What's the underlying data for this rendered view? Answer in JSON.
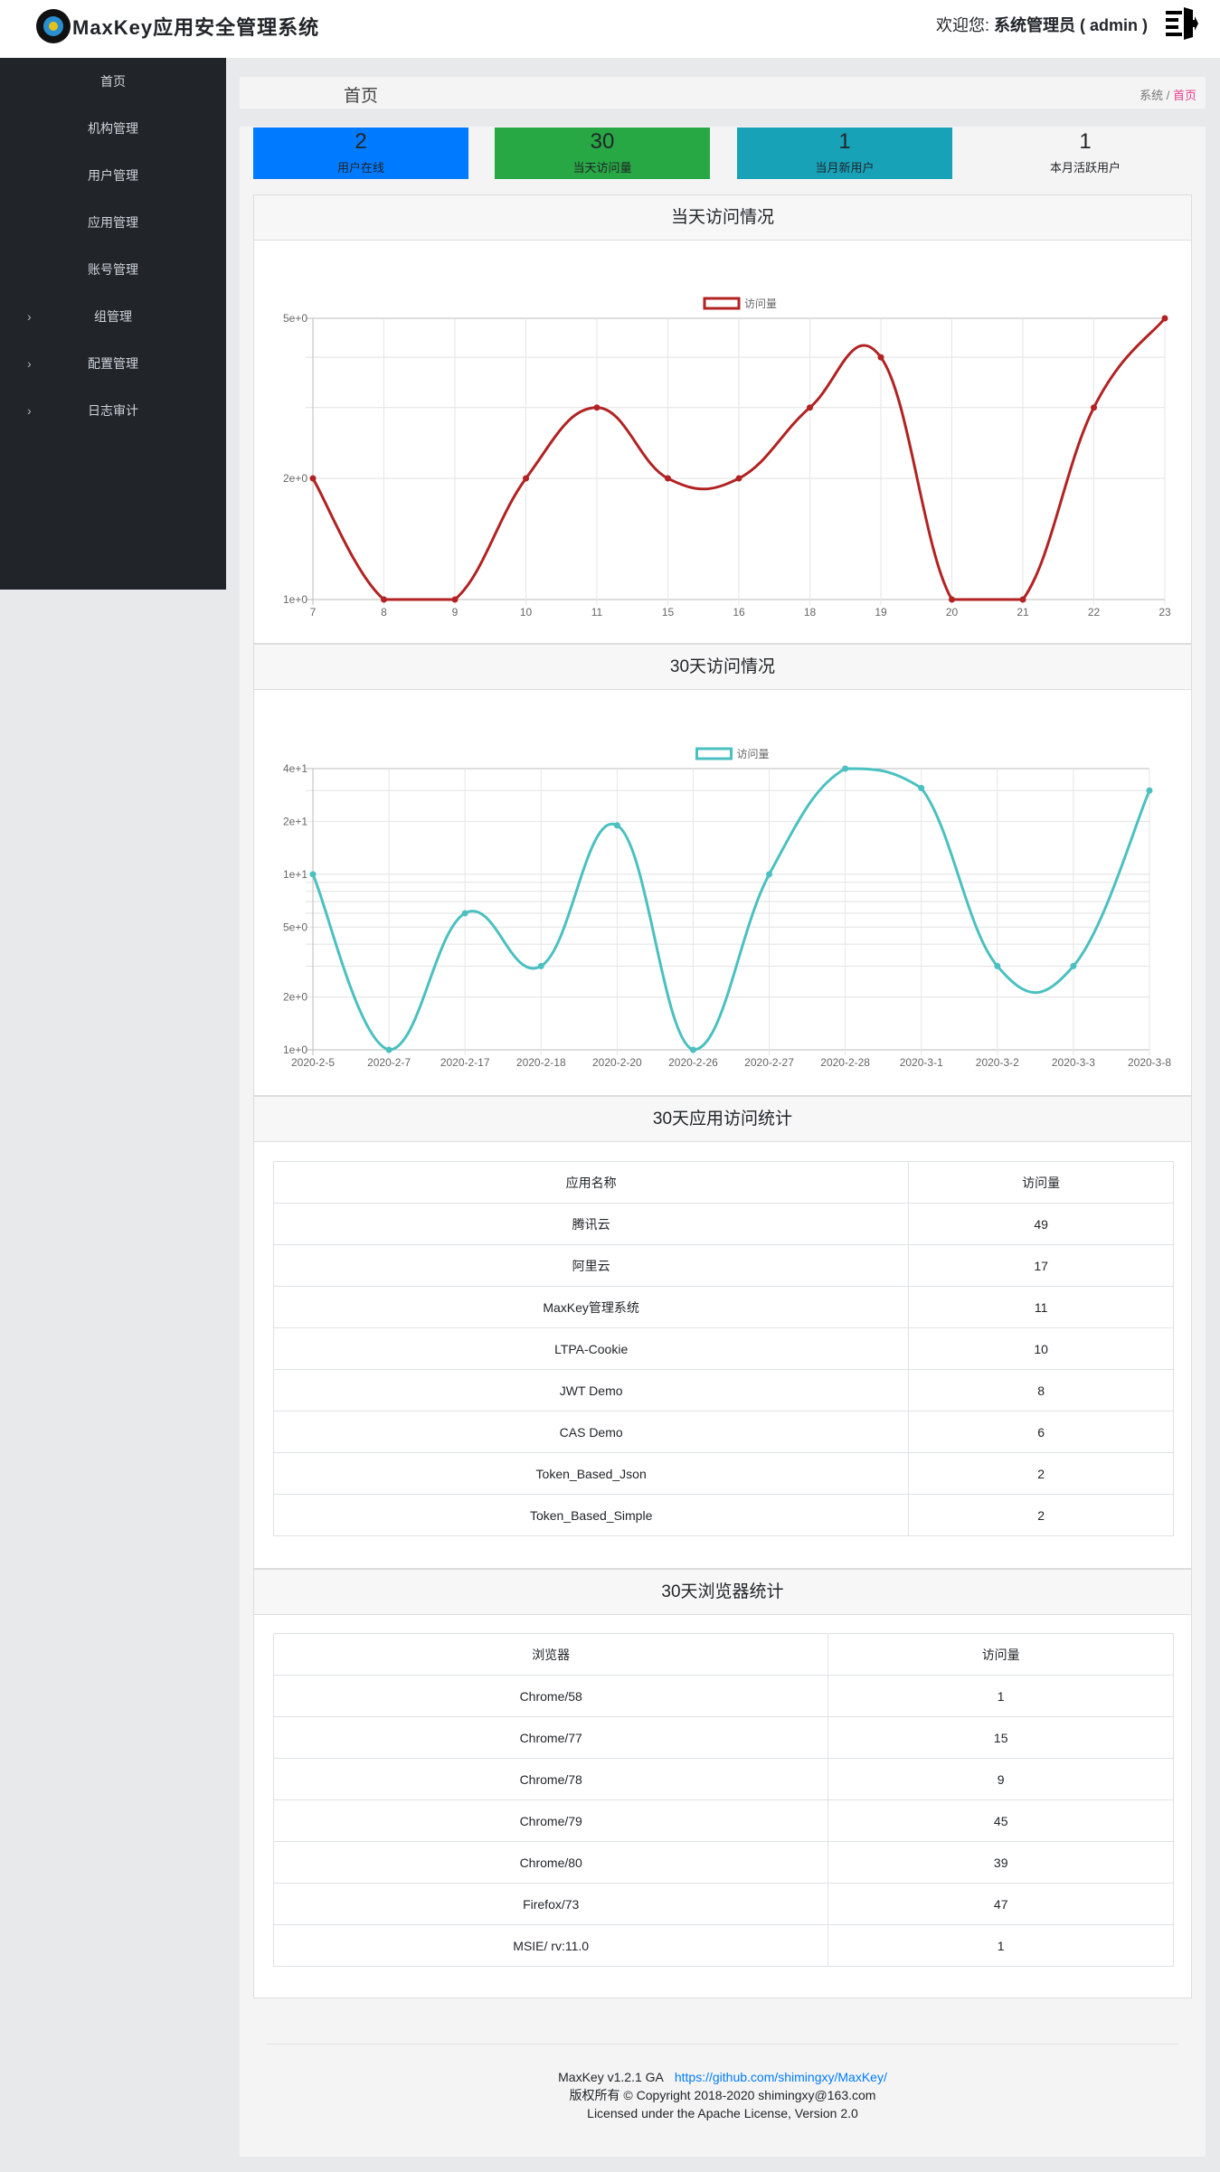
{
  "header": {
    "app_title": "MaxKey应用安全管理系统",
    "welcome": "欢迎您:",
    "user": "系统管理员 ( admin )"
  },
  "sidebar": {
    "items": [
      {
        "label": "首页",
        "expandable": false
      },
      {
        "label": "机构管理",
        "expandable": false
      },
      {
        "label": "用户管理",
        "expandable": false
      },
      {
        "label": "应用管理",
        "expandable": false
      },
      {
        "label": "账号管理",
        "expandable": false
      },
      {
        "label": "组管理",
        "expandable": true
      },
      {
        "label": "配置管理",
        "expandable": true
      },
      {
        "label": "日志审计",
        "expandable": true
      }
    ]
  },
  "breadcrumb": {
    "title": "首页",
    "parent": "系统",
    "sep": " / ",
    "current": "首页"
  },
  "stats": [
    {
      "value": "2",
      "label": "用户在线",
      "color": "#007bff"
    },
    {
      "value": "30",
      "label": "当天访问量",
      "color": "#28a745"
    },
    {
      "value": "1",
      "label": "当月新用户",
      "color": "#17a2b8"
    },
    {
      "value": "1",
      "label": "本月活跃用户",
      "color": "#f4f4f4"
    }
  ],
  "chart_data": [
    {
      "card_title": "当天访问情况",
      "type": "line",
      "yscale": "log",
      "color": "#b22222",
      "legend": "访问量",
      "legend_position": "top",
      "grid": true,
      "x": [
        "7",
        "8",
        "9",
        "10",
        "11",
        "15",
        "16",
        "18",
        "19",
        "20",
        "21",
        "22",
        "23"
      ],
      "values": [
        2,
        1,
        1,
        2,
        3,
        2,
        2,
        3,
        4,
        1,
        1,
        3,
        5
      ],
      "ylim": [
        1,
        5
      ],
      "yticks": [
        1,
        2,
        3,
        4,
        5
      ],
      "ytick_labels": {
        "1": "1e+0",
        "2": "2e+0",
        "5": "5e+0"
      }
    },
    {
      "card_title": "30天访问情况",
      "type": "line",
      "yscale": "log",
      "color": "#4bc0c0",
      "legend": "访问量",
      "legend_position": "top",
      "grid": true,
      "x": [
        "2020-2-5",
        "2020-2-7",
        "2020-2-17",
        "2020-2-18",
        "2020-2-20",
        "2020-2-26",
        "2020-2-27",
        "2020-2-28",
        "2020-3-1",
        "2020-3-2",
        "2020-3-3",
        "2020-3-8"
      ],
      "values": [
        10,
        1,
        6,
        3,
        19,
        1,
        10,
        40,
        31,
        3,
        3,
        30
      ],
      "ylim": [
        1,
        40
      ],
      "yticks": [
        1,
        2,
        3,
        4,
        5,
        6,
        7,
        8,
        9,
        10,
        20,
        30,
        40
      ],
      "ytick_labels": {
        "1": "1e+0",
        "2": "2e+0",
        "5": "5e+0",
        "10": "1e+1",
        "20": "2e+1",
        "40": "4e+1"
      }
    }
  ],
  "apps": {
    "title": "30天应用访问统计",
    "headers": [
      "应用名称",
      "访问量"
    ],
    "rows": [
      [
        "腾讯云",
        "49"
      ],
      [
        "阿里云",
        "17"
      ],
      [
        "MaxKey管理系统",
        "11"
      ],
      [
        "LTPA-Cookie",
        "10"
      ],
      [
        "JWT Demo",
        "8"
      ],
      [
        "CAS Demo",
        "6"
      ],
      [
        "Token_Based_Json",
        "2"
      ],
      [
        "Token_Based_Simple",
        "2"
      ]
    ]
  },
  "browsers": {
    "title": "30天浏览器统计",
    "headers": [
      "浏览器",
      "访问量"
    ],
    "rows": [
      [
        "Chrome/58",
        "1"
      ],
      [
        "Chrome/77",
        "15"
      ],
      [
        "Chrome/78",
        "9"
      ],
      [
        "Chrome/79",
        "45"
      ],
      [
        "Chrome/80",
        "39"
      ],
      [
        "Firefox/73",
        "47"
      ],
      [
        "MSIE/ rv:11.0",
        "1"
      ]
    ]
  },
  "footer": {
    "version": "MaxKey  v1.2.1 GA",
    "link": "https://github.com/shimingxy/MaxKey/",
    "copyright": "版权所有 © Copyright 2018-2020 shimingxy@163.com",
    "license": "Licensed under the Apache License, Version 2.0"
  }
}
